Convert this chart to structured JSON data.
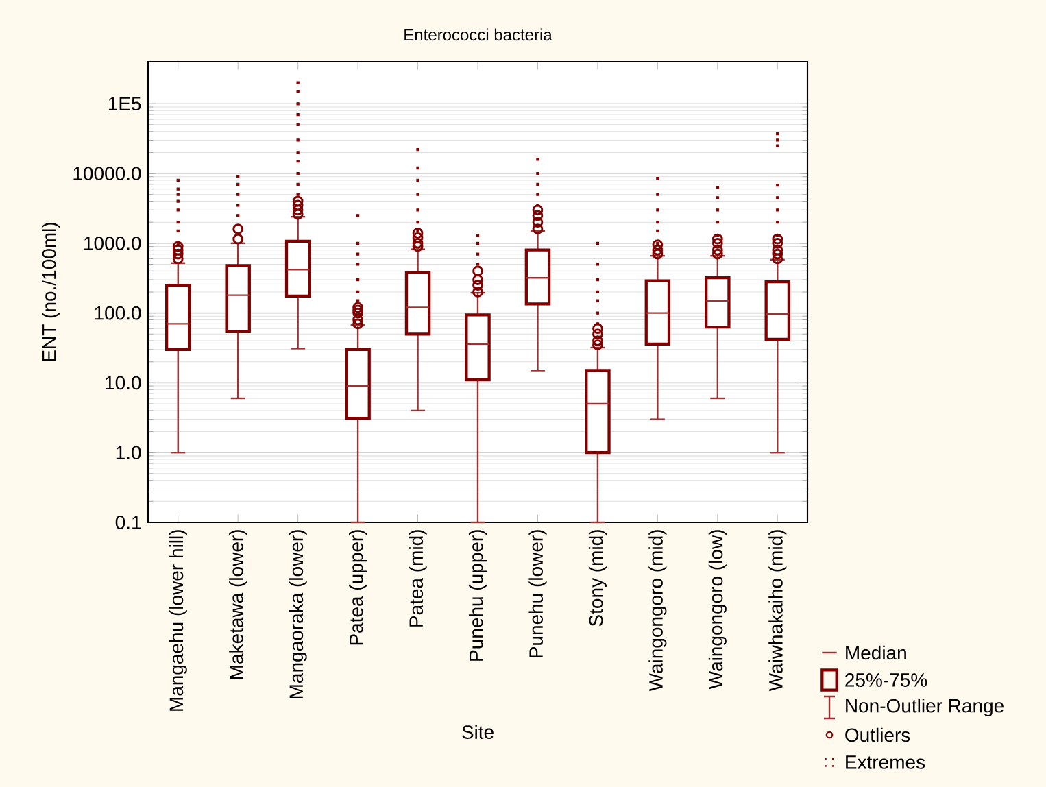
{
  "chart_data": {
    "type": "box",
    "title": "Enterococci bacteria",
    "xlabel": "Site",
    "ylabel": "ENT (no./100ml)",
    "categories": [
      "Mangaehu (lower hill)",
      "Maketawa (lower)",
      "Mangaoraka (lower)",
      "Patea (upper)",
      "Patea (mid)",
      "Punehu (upper)",
      "Punehu (lower)",
      "Stony (mid)",
      "Waingongoro (mid)",
      "Waingongoro (low)",
      "Waiwhakaiho (mid)"
    ],
    "color": "#800000",
    "log": "y",
    "grid": "y",
    "legend": "bottom right",
    "ylim": [
      0.1,
      400000
    ],
    "yticks": [
      0.1,
      {
        "value": 1,
        "label": "1.0"
      },
      {
        "value": 10,
        "label": "10.0"
      },
      {
        "value": 100,
        "label": "100.0"
      },
      {
        "value": 1000,
        "label": "1000.0"
      },
      {
        "value": 10000,
        "label": "10000.0"
      },
      {
        "value": 100000,
        "label": "1E5"
      }
    ],
    "boxes": [
      {
        "low": 1,
        "q1": 30,
        "median": 70,
        "q3": 250,
        "high": 520
      },
      {
        "low": 6,
        "q1": 54,
        "median": 180,
        "q3": 480,
        "high": 1000
      },
      {
        "low": 31,
        "q1": 175,
        "median": 420,
        "q3": 1070,
        "high": 2400
      },
      {
        "low": 0.1,
        "q1": 3.1,
        "median": 9,
        "q3": 30,
        "high": 67
      },
      {
        "low": 4,
        "q1": 50,
        "median": 120,
        "q3": 380,
        "high": 820
      },
      {
        "low": 0.1,
        "q1": 11,
        "median": 36,
        "q3": 94,
        "high": 195
      },
      {
        "low": 15,
        "q1": 135,
        "median": 320,
        "q3": 800,
        "high": 1500
      },
      {
        "low": 0.1,
        "q1": 1,
        "median": 5,
        "q3": 15,
        "high": 32
      },
      {
        "low": 3,
        "q1": 36,
        "median": 100,
        "q3": 290,
        "high": 660
      },
      {
        "low": 6,
        "q1": 63,
        "median": 150,
        "q3": 320,
        "high": 660
      },
      {
        "low": 1,
        "q1": 42,
        "median": 97,
        "q3": 280,
        "high": 580
      }
    ],
    "annotations": [
      "Median",
      "25%-75%",
      "Non-Outlier Range"
    ],
    "series": [
      {
        "type": "scatter",
        "name": "Outliers",
        "color": "#800000",
        "marker": "circle",
        "x": [
          "Mangaehu (lower hill)",
          "Mangaehu (lower hill)",
          "Mangaehu (lower hill)",
          "Mangaehu (lower hill)",
          "Maketawa (lower)",
          "Maketawa (lower)",
          "Mangaoraka (lower)",
          "Mangaoraka (lower)",
          "Mangaoraka (lower)",
          "Mangaoraka (lower)",
          "Patea (upper)",
          "Patea (upper)",
          "Patea (upper)",
          "Patea (upper)",
          "Patea (upper)",
          "Patea (upper)",
          "Patea (mid)",
          "Patea (mid)",
          "Patea (mid)",
          "Patea (mid)",
          "Punehu (upper)",
          "Punehu (upper)",
          "Punehu (upper)",
          "Punehu (upper)",
          "Punehu (lower)",
          "Punehu (lower)",
          "Punehu (lower)",
          "Punehu (lower)",
          "Stony (mid)",
          "Stony (mid)",
          "Stony (mid)",
          "Stony (mid)",
          "Waingongoro (mid)",
          "Waingongoro (mid)",
          "Waingongoro (mid)",
          "Waingongoro (low)",
          "Waingongoro (low)",
          "Waingongoro (low)",
          "Waingongoro (low)",
          "Waingongoro (low)",
          "Waiwhakaiho (mid)",
          "Waiwhakaiho (mid)",
          "Waiwhakaiho (mid)",
          "Waiwhakaiho (mid)",
          "Waiwhakaiho (mid)"
        ],
        "values": [
          600,
          700,
          800,
          900,
          1150,
          1600,
          2600,
          3000,
          3500,
          4000,
          70,
          80,
          null,
          100,
          110,
          120,
          900,
          1000,
          1200,
          1400,
          200,
          250,
          300,
          400,
          1600,
          2000,
          2500,
          3000,
          35,
          40,
          50,
          60,
          700,
          800,
          950,
          700,
          800,
          null,
          1000,
          1150,
          600,
          700,
          800,
          1000,
          1150
        ]
      },
      {
        "type": "scatter",
        "name": "Extremes",
        "color": "#800000",
        "marker": "square",
        "x": [
          "Mangaehu (lower hill)",
          "Mangaehu (lower hill)",
          "Mangaehu (lower hill)",
          "Mangaehu (lower hill)",
          "Mangaehu (lower hill)",
          "Mangaehu (lower hill)",
          "Mangaehu (lower hill)",
          "Mangaehu (lower hill)",
          "Maketawa (lower)",
          "Maketawa (lower)",
          "Maketawa (lower)",
          "Maketawa (lower)",
          "Maketawa (lower)",
          "Mangaoraka (lower)",
          "Mangaoraka (lower)",
          "Mangaoraka (lower)",
          "Mangaoraka (lower)",
          "Mangaoraka (lower)",
          "Mangaoraka (lower)",
          "Mangaoraka (lower)",
          "Mangaoraka (lower)",
          "Mangaoraka (lower)",
          "Mangaoraka (lower)",
          "Mangaoraka (lower)",
          "Patea (upper)",
          "Patea (upper)",
          "Patea (upper)",
          "Patea (upper)",
          "Patea (upper)",
          "Patea (upper)",
          "Patea (upper)",
          "Patea (mid)",
          "Patea (mid)",
          "Patea (mid)",
          "Patea (mid)",
          "Patea (mid)",
          "Patea (mid)",
          "Patea (mid)",
          "Punehu (upper)",
          "Punehu (upper)",
          "Punehu (upper)",
          "Punehu (upper)",
          "Punehu (lower)",
          "Punehu (lower)",
          "Punehu (lower)",
          "Punehu (lower)",
          "Punehu (lower)",
          "Stony (mid)",
          "Stony (mid)",
          "Stony (mid)",
          "Stony (mid)",
          "Stony (mid)",
          "Stony (mid)",
          "Stony (mid)",
          "Waingongoro (mid)",
          "Waingongoro (mid)",
          "Waingongoro (mid)",
          "Waingongoro (mid)",
          "Waingongoro (mid)",
          "Waingongoro (mid)",
          "Waingongoro (low)",
          "Waingongoro (low)",
          "Waingongoro (low)",
          "Waingongoro (low)",
          "Waingongoro (low)",
          "Waiwhakaiho (mid)",
          "Waiwhakaiho (mid)",
          "Waiwhakaiho (mid)",
          "Waiwhakaiho (mid)",
          "Waiwhakaiho (mid)",
          "Waiwhakaiho (mid)",
          "Waiwhakaiho (mid)",
          "Waiwhakaiho (mid)"
        ],
        "values": [
          1000,
          1500,
          2000,
          3000,
          4000,
          5000,
          6000,
          8000,
          2500,
          3500,
          5000,
          7000,
          9000,
          5000,
          7000,
          10000,
          15000,
          20000,
          30000,
          50000,
          70000,
          100000,
          150000,
          200000,
          150,
          200,
          300,
          500,
          700,
          1000,
          2500,
          1500,
          2000,
          3000,
          5000,
          8000,
          12000,
          22000,
          500,
          700,
          1000,
          1300,
          3500,
          5000,
          7000,
          10000,
          16000,
          70,
          100,
          150,
          200,
          300,
          500,
          1000,
          1000,
          1500,
          2000,
          3000,
          5000,
          8500,
          1300,
          2000,
          3000,
          4500,
          6300,
          1300,
          2000,
          3000,
          4500,
          6800,
          25000,
          30000,
          37000
        ]
      }
    ]
  }
}
